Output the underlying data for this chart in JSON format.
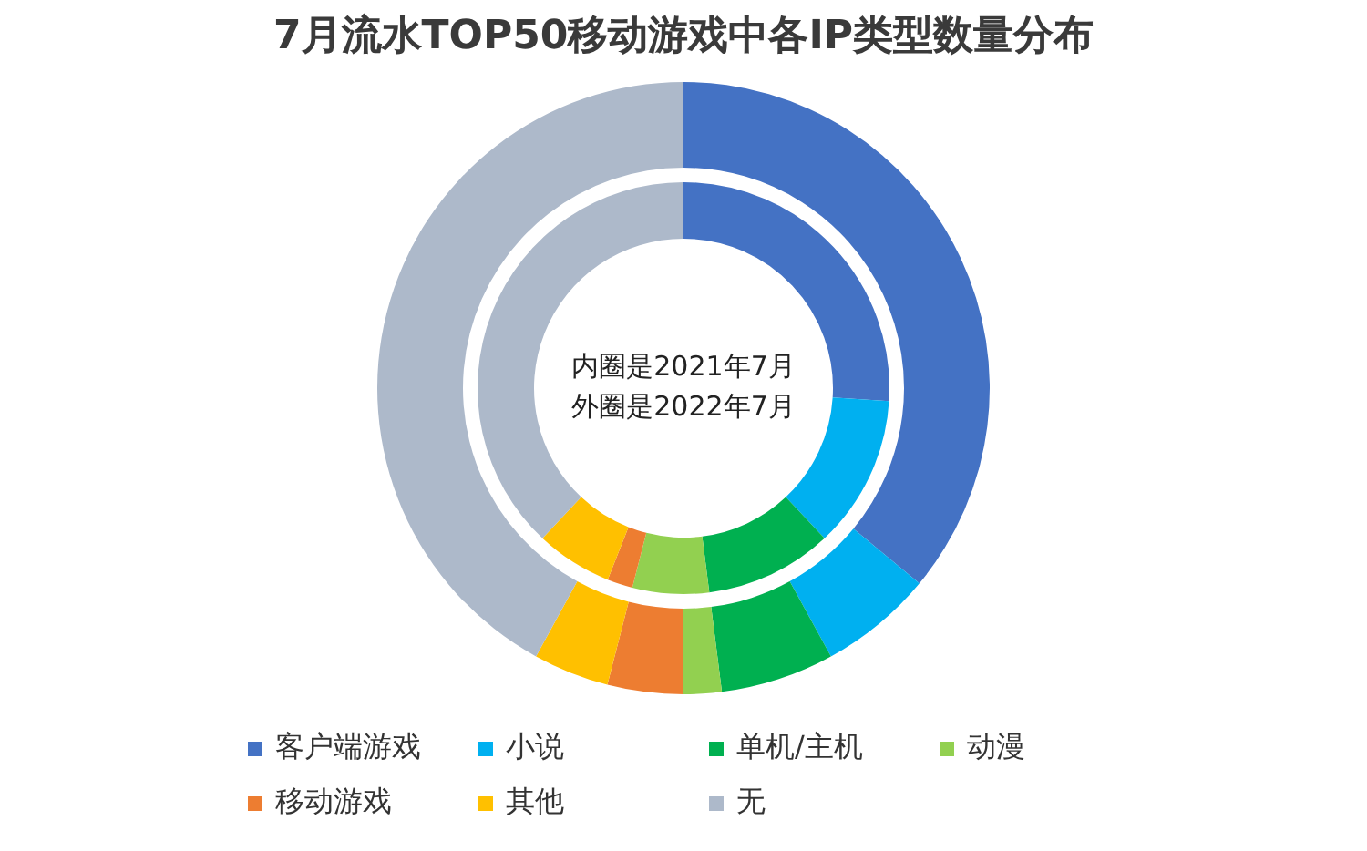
{
  "chart_data": {
    "type": "donut",
    "title": "7月流水TOP50移动游戏中各IP类型数量分布",
    "categories": [
      "客户端游戏",
      "小说",
      "单机/主机",
      "动漫",
      "移动游戏",
      "其他",
      "无"
    ],
    "colors": [
      "#4472c4",
      "#00b0f0",
      "#00b050",
      "#92d050",
      "#ed7d31",
      "#ffc000",
      "#adb9ca"
    ],
    "series": [
      {
        "values": [
          36,
          6,
          6,
          2,
          4,
          4,
          42
        ]
      },
      {
        "values": [
          26,
          12,
          10,
          6,
          2,
          6,
          38
        ]
      }
    ],
    "annotations": [
      "内圈是2021年7月",
      "外圈是2022年7月"
    ],
    "legend": "bottom"
  }
}
